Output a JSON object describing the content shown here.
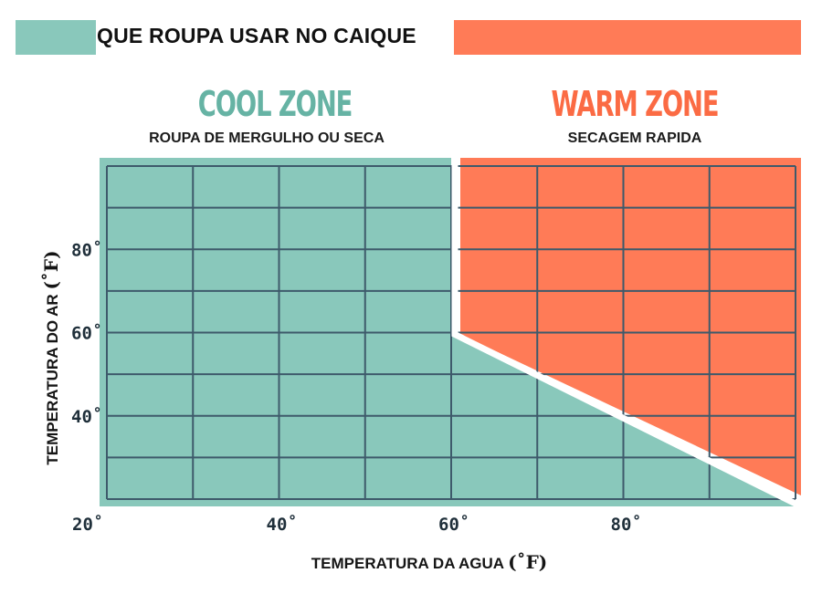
{
  "title": "QUE ROUPA USAR NO CAIQUE",
  "colors": {
    "cool": "#89c8bb",
    "warm": "#ff7b57",
    "grid": "#3e5a6b",
    "divider": "#ffffff",
    "cool_title": "#66b3a4",
    "warm_title": "#fb6b44"
  },
  "zones": {
    "cool": {
      "title": "COOL ZONE",
      "subtitle": "ROUPA DE MERGULHO OU SECA"
    },
    "warm": {
      "title": "WARM ZONE",
      "subtitle": "SECAGEM RAPIDA"
    }
  },
  "chart_data": {
    "type": "area",
    "xlabel": "TEMPERATURA DA AGUA",
    "xlabel_unit": "(˚F)",
    "ylabel": "TEMPERATURA DO AR",
    "ylabel_unit": "(˚F)",
    "xlim": [
      20,
      100
    ],
    "ylim": [
      20,
      100
    ],
    "x_ticks": [
      {
        "value": 20,
        "label": "20˚"
      },
      {
        "value": 40,
        "label": "40˚"
      },
      {
        "value": 60,
        "label": "60˚"
      },
      {
        "value": 80,
        "label": "80˚"
      }
    ],
    "y_ticks": [
      {
        "value": 40,
        "label": "40˚"
      },
      {
        "value": 60,
        "label": "60˚"
      },
      {
        "value": 80,
        "label": "80˚"
      }
    ],
    "grid": true,
    "grid_step": 10,
    "boundary": [
      {
        "x": 60,
        "y": 100
      },
      {
        "x": 60,
        "y": 60
      },
      {
        "x": 100,
        "y": 20
      }
    ],
    "regions": [
      {
        "zone": "cool",
        "side": "below-left of boundary"
      },
      {
        "zone": "warm",
        "side": "above-right of boundary"
      }
    ]
  }
}
